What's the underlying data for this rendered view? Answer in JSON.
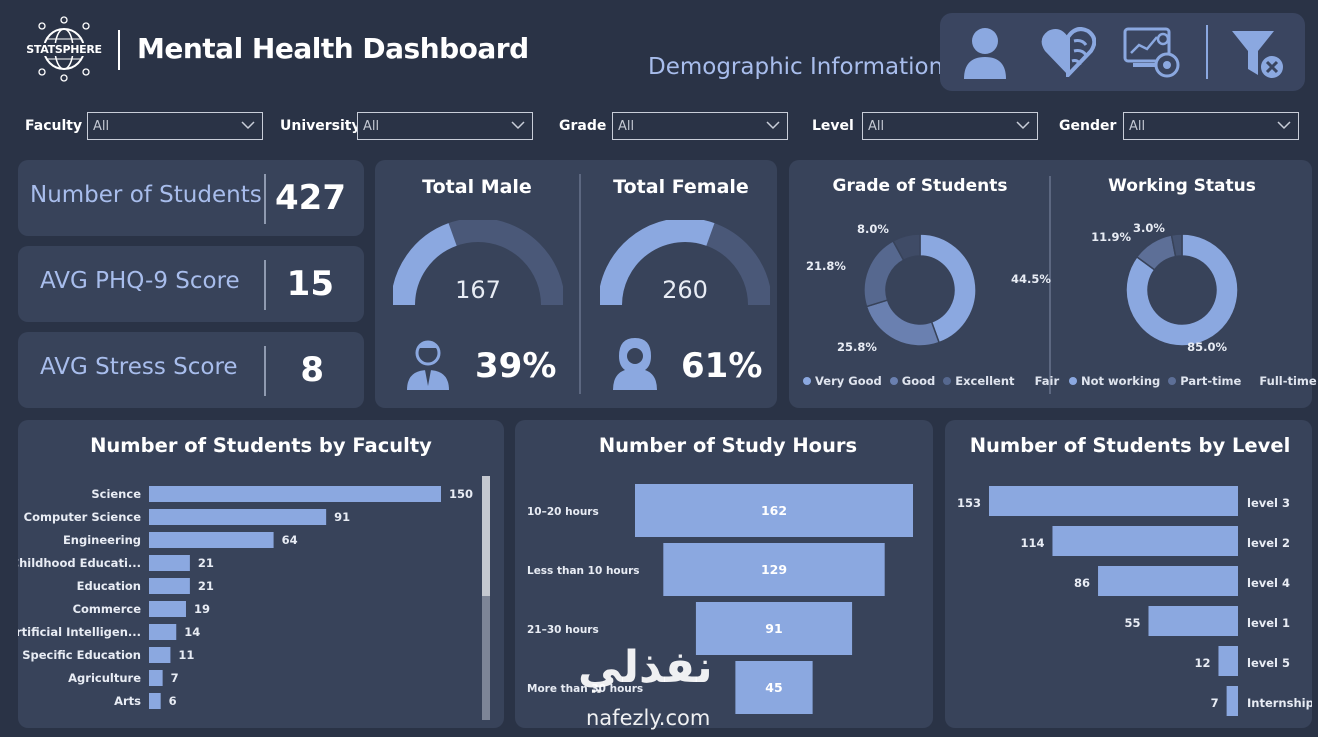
{
  "header": {
    "logo_text": "STATSPHERE",
    "title": "Mental Health Dashboard",
    "subtitle": "Demographic Information",
    "nav_icons": [
      "user-icon",
      "brain-heart-icon",
      "analytics-monitor-icon",
      "clear-filter-icon"
    ]
  },
  "filters": [
    {
      "label": "Faculty",
      "value": "All"
    },
    {
      "label": "University",
      "value": "All"
    },
    {
      "label": "Grade",
      "value": "All"
    },
    {
      "label": "Level",
      "value": "All"
    },
    {
      "label": "Gender",
      "value": "All"
    }
  ],
  "kpis": [
    {
      "label": "Number of Students",
      "value": "427"
    },
    {
      "label": "AVG PHQ-9 Score",
      "value": "15"
    },
    {
      "label": "AVG Stress Score",
      "value": "8"
    }
  ],
  "gender": {
    "male": {
      "title": "Total Male",
      "count": 167,
      "count_text": "167",
      "percent": "39%",
      "fraction": 0.39
    },
    "female": {
      "title": "Total Female",
      "count": 260,
      "count_text": "260",
      "percent": "61%",
      "fraction": 0.61
    }
  },
  "colors": {
    "background": "#2a3346",
    "card": "#38435a",
    "accent": "#8ba8e0",
    "accent_dark": "#4a5878",
    "kpi_label": "#a8bdec"
  },
  "grade_chart": {
    "title": "Grade of Students",
    "type": "pie",
    "legend": [
      "Very Good",
      "Good",
      "Excellent",
      "Fair"
    ],
    "slices": [
      {
        "name": "Very Good",
        "value": 44.5,
        "label": "44.5%",
        "color": "#8ba8e0"
      },
      {
        "name": "Good",
        "value": 25.8,
        "label": "25.8%",
        "color": "#6a80b0"
      },
      {
        "name": "Excellent",
        "value": 21.8,
        "label": "21.8%",
        "color": "#56688f"
      },
      {
        "name": "Fair",
        "value": 8.0,
        "label": "8.0%",
        "color": "#3f4b66"
      }
    ]
  },
  "work_chart": {
    "title": "Working Status",
    "type": "pie",
    "legend": [
      "Not working",
      "Part-time",
      "Full-time"
    ],
    "slices": [
      {
        "name": "Not working",
        "value": 85.0,
        "label": "85.0%",
        "color": "#8ba8e0"
      },
      {
        "name": "Part-time",
        "value": 11.9,
        "label": "11.9%",
        "color": "#5d6f97"
      },
      {
        "name": "Full-time",
        "value": 3.0,
        "label": "3.0%",
        "color": "#445270"
      }
    ]
  },
  "chart_data": [
    {
      "type": "bar",
      "title": "Number of Students by Faculty",
      "categories": [
        "Science",
        "Computer Science",
        "Engineering",
        "Childhood Educati...",
        "Education",
        "Commerce",
        "Artificial Intelligen...",
        "Specific Education",
        "Agriculture",
        "Arts"
      ],
      "values": [
        150,
        91,
        64,
        21,
        21,
        19,
        14,
        11,
        7,
        6
      ]
    },
    {
      "type": "bar",
      "title": "Number of Study Hours",
      "categories": [
        "10–20 hours",
        "Less than 10 hours",
        "21–30 hours",
        "More than 30 hours"
      ],
      "values": [
        162,
        129,
        91,
        45
      ]
    },
    {
      "type": "bar",
      "title": "Number of Students by Level",
      "categories": [
        "level 3",
        "level 2",
        "level 4",
        "level 1",
        "level 5",
        "Internship"
      ],
      "values": [
        153,
        114,
        86,
        55,
        12,
        7
      ]
    }
  ],
  "watermark": {
    "arabic": "نفذلي",
    "latin": "nafezly.com"
  }
}
